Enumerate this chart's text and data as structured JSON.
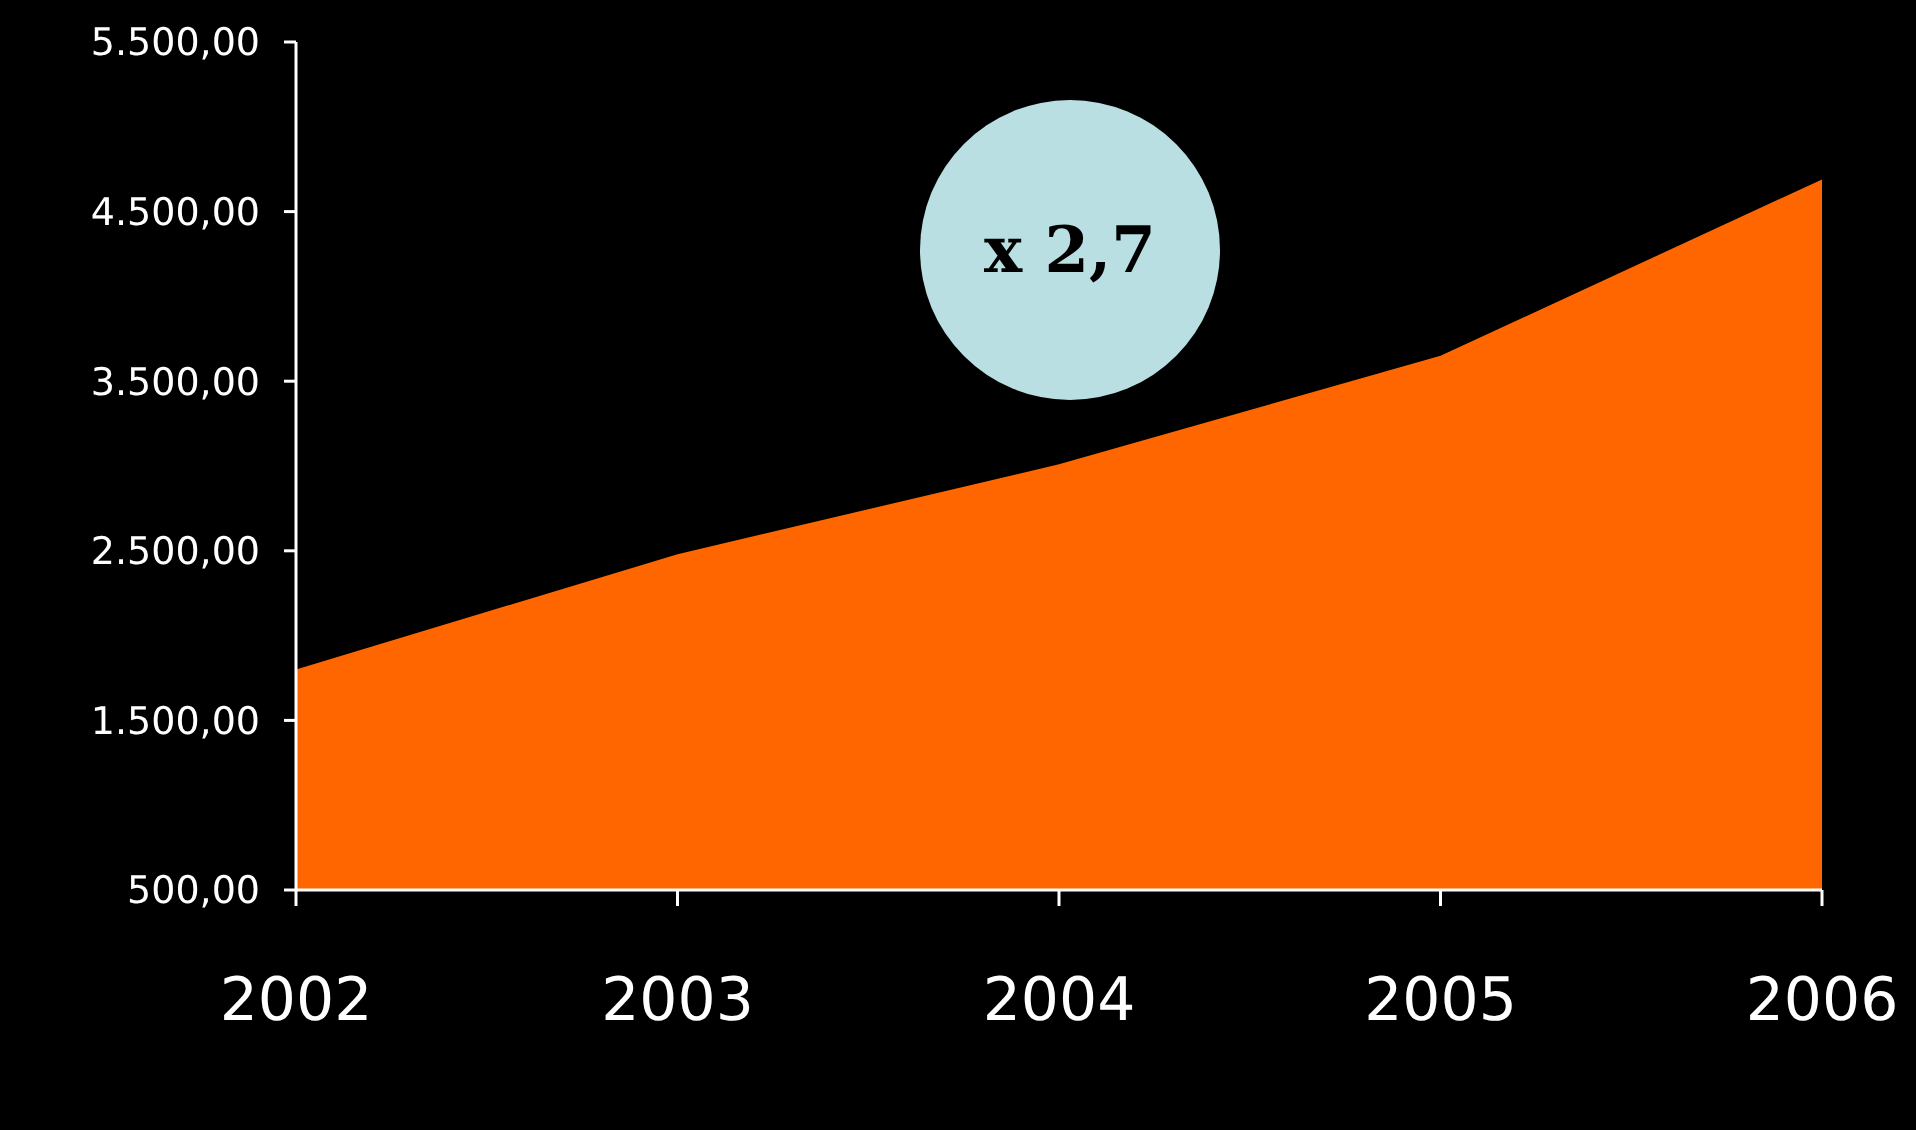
{
  "chart_data": {
    "type": "area",
    "categories": [
      "2002",
      "2003",
      "2004",
      "2005",
      "2006"
    ],
    "series": [
      {
        "color": "#ff6600",
        "values": [
          1800,
          2480,
          3010,
          3650,
          4690
        ]
      }
    ],
    "ylim": [
      500,
      5500
    ],
    "yticks": [
      {
        "value": 500,
        "label": "500,00"
      },
      {
        "value": 1500,
        "label": "1.500,00"
      },
      {
        "value": 2500,
        "label": "2.500,00"
      },
      {
        "value": 3500,
        "label": "3.500,00"
      },
      {
        "value": 4500,
        "label": "4.500,00"
      },
      {
        "value": 5500,
        "label": "5.500,00"
      }
    ],
    "grid": false,
    "annotations": [
      "x 2,7"
    ]
  }
}
